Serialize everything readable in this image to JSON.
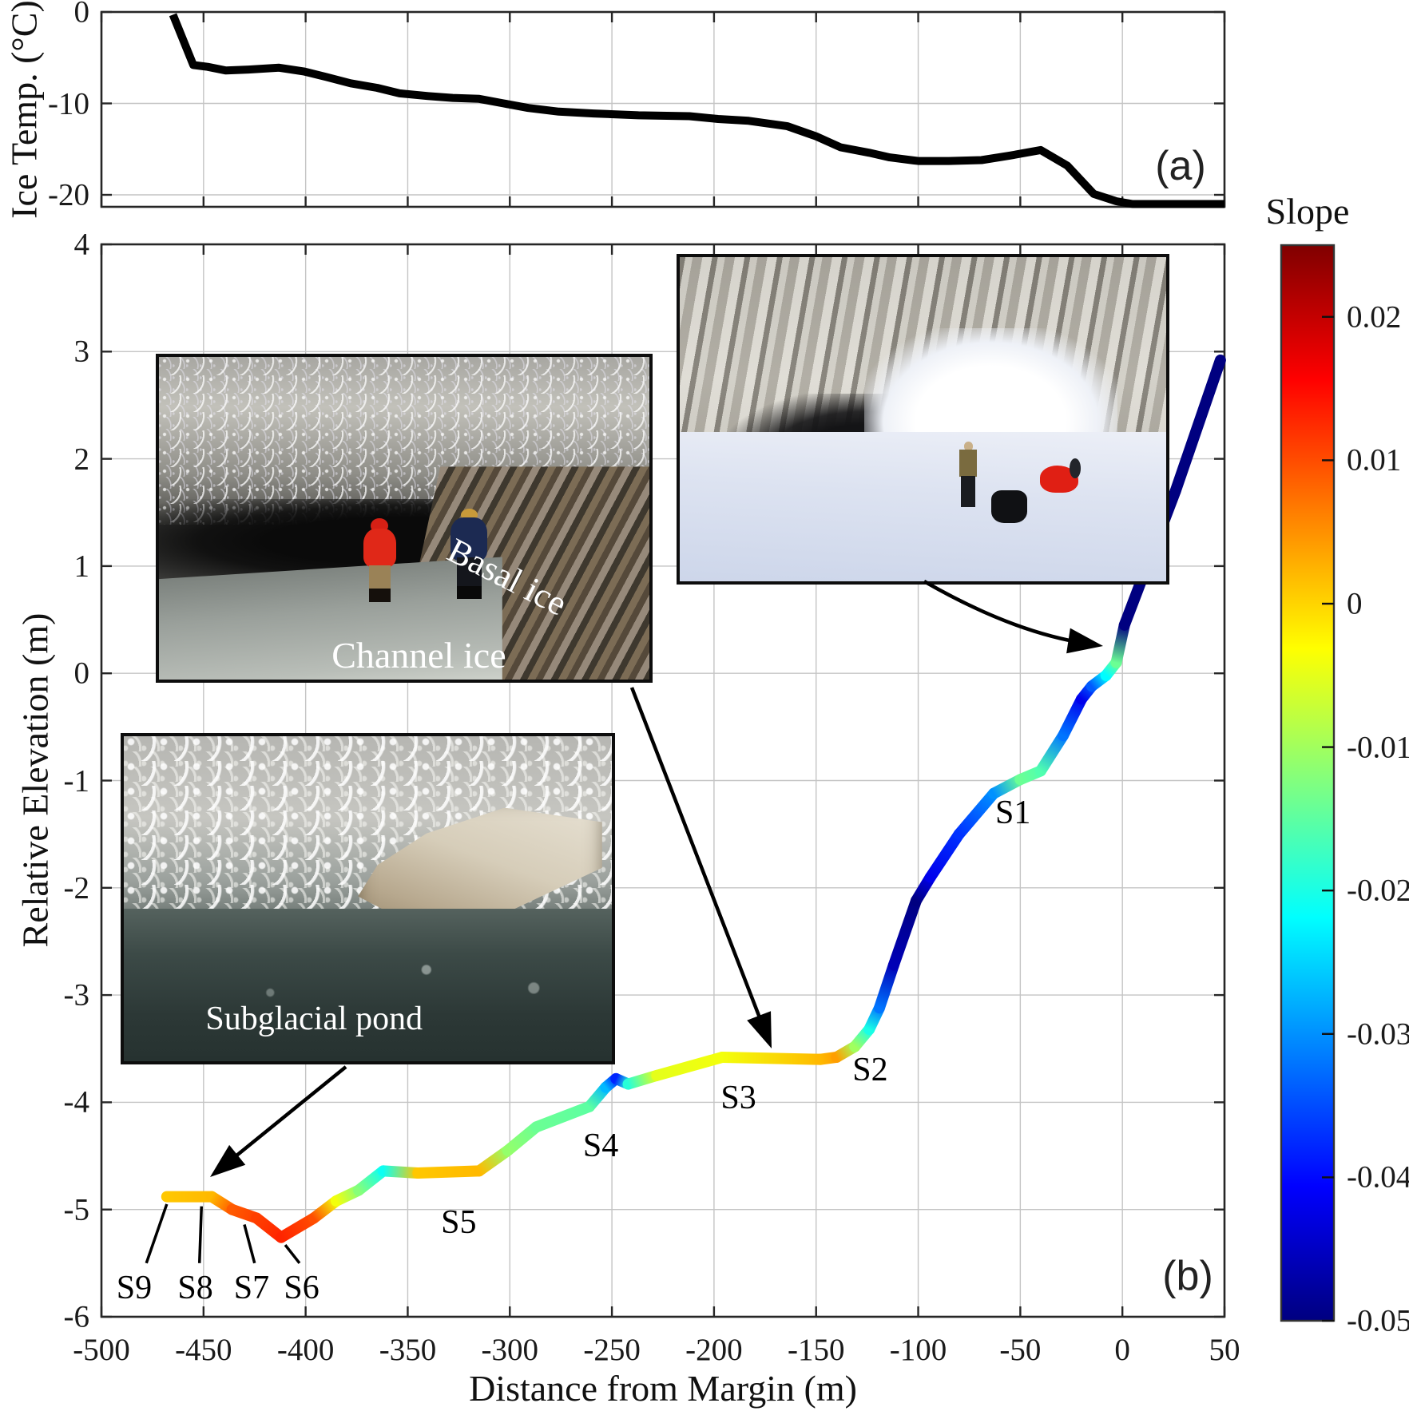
{
  "figure": {
    "panel_a_tag": "(a)",
    "panel_b_tag": "(b)"
  },
  "chart_data": [
    {
      "type": "line",
      "id": "ice-temperature-profile",
      "ylabel": "Ice Temp. (°C)",
      "xlim": [
        -500,
        50
      ],
      "ylim": [
        -21.31,
        0
      ],
      "ytick_values": [
        0,
        -10,
        -20
      ],
      "ytick_labels": [
        "0",
        "-10",
        "-20"
      ],
      "grid": true,
      "line_color": "#000000",
      "points": [
        [
          -465,
          -0.3
        ],
        [
          -455,
          -5.8
        ],
        [
          -448,
          -6.0
        ],
        [
          -439,
          -6.4
        ],
        [
          -428,
          -6.3
        ],
        [
          -413,
          -6.1
        ],
        [
          -401,
          -6.5
        ],
        [
          -390,
          -7.1
        ],
        [
          -378,
          -7.8
        ],
        [
          -365,
          -8.3
        ],
        [
          -354,
          -8.9
        ],
        [
          -340,
          -9.2
        ],
        [
          -328,
          -9.4
        ],
        [
          -315,
          -9.5
        ],
        [
          -303,
          -10.0
        ],
        [
          -291,
          -10.5
        ],
        [
          -276,
          -10.9
        ],
        [
          -259,
          -11.1
        ],
        [
          -237,
          -11.3
        ],
        [
          -212,
          -11.4
        ],
        [
          -198,
          -11.7
        ],
        [
          -183,
          -11.9
        ],
        [
          -164,
          -12.5
        ],
        [
          -150,
          -13.6
        ],
        [
          -138,
          -14.8
        ],
        [
          -124,
          -15.4
        ],
        [
          -114,
          -15.9
        ],
        [
          -100,
          -16.3
        ],
        [
          -85,
          -16.3
        ],
        [
          -69,
          -16.2
        ],
        [
          -55,
          -15.7
        ],
        [
          -40,
          -15.1
        ],
        [
          -27,
          -16.8
        ],
        [
          -14,
          -19.9
        ],
        [
          -3,
          -20.7
        ],
        [
          5,
          -21.0
        ],
        [
          50,
          -21.0
        ]
      ]
    },
    {
      "type": "line",
      "id": "channel-elevation-profile",
      "xlabel": "Distance from Margin (m)",
      "ylabel": "Relative Elevation (m)",
      "xlim": [
        -500,
        50
      ],
      "ylim": [
        -6,
        4
      ],
      "xtick_values": [
        -500,
        -450,
        -400,
        -350,
        -300,
        -250,
        -200,
        -150,
        -100,
        -50,
        0,
        50
      ],
      "xtick_labels": [
        "-500",
        "-450",
        "-400",
        "-350",
        "-300",
        "-250",
        "-200",
        "-150",
        "-100",
        "-50",
        "0",
        "50"
      ],
      "ytick_values": [
        4,
        3,
        2,
        1,
        0,
        -1,
        -2,
        -3,
        -4,
        -5,
        -6
      ],
      "ytick_labels": [
        "4",
        "3",
        "2",
        "1",
        "0",
        "-1",
        "-2",
        "-3",
        "-4",
        "-5",
        "-6"
      ],
      "grid": true,
      "colormap": "jet",
      "color_by": "slope",
      "clim": [
        -0.05,
        0.025
      ],
      "points": [
        [
          -468,
          -4.88,
          0.001
        ],
        [
          -446,
          -4.88,
          0.002
        ],
        [
          -436,
          -5.0,
          0.009
        ],
        [
          -424,
          -5.08,
          0.011
        ],
        [
          -412,
          -5.26,
          0.013
        ],
        [
          -396,
          -5.08,
          0.01
        ],
        [
          -385,
          -4.92,
          -0.004
        ],
        [
          -374,
          -4.82,
          -0.012
        ],
        [
          -362,
          -4.64,
          -0.021
        ],
        [
          -345,
          -4.66,
          0.001
        ],
        [
          -315,
          -4.64,
          0.002
        ],
        [
          -301,
          -4.45,
          -0.011
        ],
        [
          -287,
          -4.23,
          -0.014
        ],
        [
          -261,
          -4.04,
          -0.015
        ],
        [
          -253,
          -3.86,
          -0.027
        ],
        [
          -248,
          -3.78,
          -0.038
        ],
        [
          -242,
          -3.83,
          -0.019
        ],
        [
          -228,
          -3.75,
          -0.005
        ],
        [
          -196,
          -3.58,
          -0.004
        ],
        [
          -148,
          -3.6,
          0.002
        ],
        [
          -140,
          -3.58,
          0.004
        ],
        [
          -131,
          -3.48,
          -0.01
        ],
        [
          -124,
          -3.32,
          -0.02
        ],
        [
          -119,
          -3.12,
          -0.032
        ],
        [
          -112,
          -2.72,
          -0.046
        ],
        [
          -101,
          -2.12,
          -0.05
        ],
        [
          -94,
          -1.9,
          -0.042
        ],
        [
          -80,
          -1.5,
          -0.037
        ],
        [
          -63,
          -1.12,
          -0.03
        ],
        [
          -50,
          -0.99,
          -0.014
        ],
        [
          -40,
          -0.91,
          -0.016
        ],
        [
          -29,
          -0.58,
          -0.032
        ],
        [
          -20,
          -0.24,
          -0.042
        ],
        [
          -15,
          -0.12,
          -0.034
        ],
        [
          -8,
          -0.02,
          -0.022
        ],
        [
          -3,
          0.1,
          -0.014
        ],
        [
          1,
          0.45,
          -0.05
        ],
        [
          26,
          1.7,
          -0.05
        ],
        [
          48,
          2.92,
          -0.05
        ]
      ],
      "stations": [
        {
          "label": "S1",
          "x": -53.6,
          "y": -1.3
        },
        {
          "label": "S2",
          "x": -123.5,
          "y": -3.7
        },
        {
          "label": "S3",
          "x": -188,
          "y": -3.96
        },
        {
          "label": "S4",
          "x": -255.5,
          "y": -4.41
        },
        {
          "label": "S5",
          "x": -325,
          "y": -5.12
        },
        {
          "label": "S6",
          "x": -402,
          "y": -5.73,
          "leader": [
            -403,
            -5.5,
            -410,
            -5.33
          ]
        },
        {
          "label": "S7",
          "x": -426.5,
          "y": -5.73,
          "leader": [
            -425,
            -5.5,
            -430,
            -5.14
          ]
        },
        {
          "label": "S8",
          "x": -454,
          "y": -5.73,
          "leader": [
            -452,
            -5.5,
            -451,
            -4.97
          ]
        },
        {
          "label": "S9",
          "x": -484,
          "y": -5.73,
          "leader": [
            -478,
            -5.5,
            -468,
            -4.95
          ]
        }
      ]
    }
  ],
  "colorbar": {
    "title": "Slope",
    "tick_values": [
      0.02,
      0.01,
      0,
      -0.01,
      -0.02,
      -0.03,
      -0.04,
      -0.05
    ],
    "tick_labels": [
      "0.02",
      "0.01",
      "0",
      "-0.01",
      "-0.02",
      "-0.03",
      "-0.04",
      "-0.05"
    ],
    "max": 0.025,
    "min": -0.05
  },
  "photo_labels": {
    "basal": "Basal ice",
    "channel": "Channel ice",
    "pond": "Subglacial pond"
  },
  "annotations": {
    "arrows": [
      {
        "name": "arrow-entrance-to-margin",
        "from": [
          1157,
          728
        ],
        "ctrl": [
          1268,
          792
        ],
        "to": [
          1381,
          809
        ]
      },
      {
        "name": "arrow-channel-to-s3",
        "from": [
          791,
          861
        ],
        "to": [
          966,
          1313
        ]
      },
      {
        "name": "arrow-pond-to-s8",
        "from": [
          433,
          1336
        ],
        "to": [
          263,
          1474
        ]
      }
    ]
  }
}
